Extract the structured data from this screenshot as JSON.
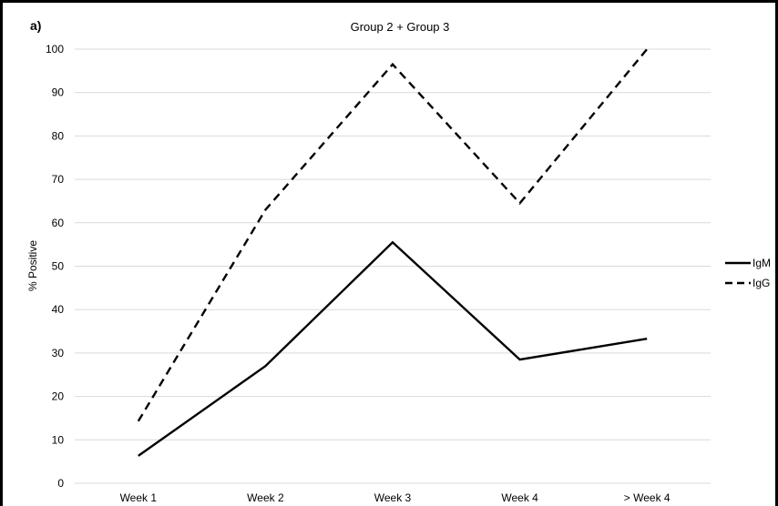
{
  "panel_label": "a)",
  "chart_data": {
    "type": "line",
    "title": "Group 2 + Group 3",
    "xlabel": "",
    "ylabel": "% Positive",
    "categories": [
      "Week 1",
      "Week 2",
      "Week 3",
      "Week 4",
      "> Week 4"
    ],
    "ylim": [
      0,
      100
    ],
    "yticks": [
      0,
      10,
      20,
      30,
      40,
      50,
      60,
      70,
      80,
      90,
      100
    ],
    "grid": true,
    "legend_position": "right",
    "series": [
      {
        "name": "IgM",
        "style": "solid",
        "color": "#000000",
        "values": [
          6.3,
          27,
          55.5,
          28.5,
          33.3
        ]
      },
      {
        "name": "IgG",
        "style": "dashed",
        "color": "#000000",
        "values": [
          14.3,
          63,
          96.5,
          64.5,
          100
        ]
      }
    ]
  }
}
